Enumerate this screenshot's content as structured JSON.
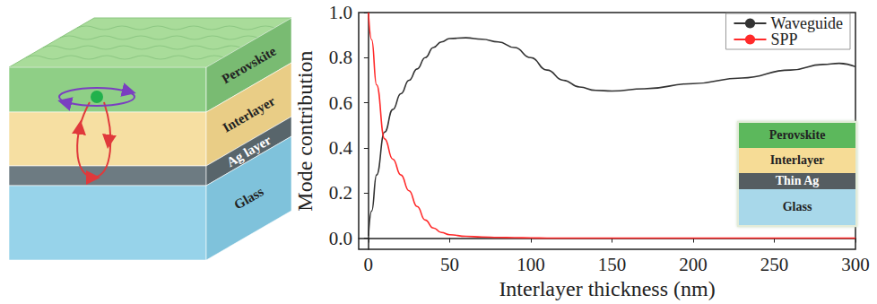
{
  "diagram": {
    "layers": [
      "Perovskite",
      "Interlayer",
      "Ag layer",
      "Glass"
    ]
  },
  "chart_data": {
    "type": "line",
    "x_label": "Interlayer thickness (nm)",
    "y_label": "Mode contribution",
    "x": [
      0,
      2,
      5,
      10,
      15,
      20,
      25,
      30,
      35,
      40,
      45,
      50,
      60,
      70,
      80,
      90,
      100,
      110,
      120,
      130,
      140,
      150,
      170,
      200,
      230,
      260,
      280,
      290,
      300
    ],
    "series": [
      {
        "name": "Waveguide",
        "color": "#333333",
        "values": [
          0.01,
          0.12,
          0.28,
          0.47,
          0.57,
          0.64,
          0.7,
          0.75,
          0.8,
          0.845,
          0.87,
          0.885,
          0.888,
          0.882,
          0.87,
          0.845,
          0.8,
          0.745,
          0.7,
          0.67,
          0.655,
          0.652,
          0.662,
          0.685,
          0.71,
          0.745,
          0.77,
          0.775,
          0.76
        ]
      },
      {
        "name": "SPP",
        "color": "#ff2a2a",
        "values": [
          1.0,
          0.88,
          0.68,
          0.44,
          0.35,
          0.28,
          0.21,
          0.14,
          0.08,
          0.045,
          0.025,
          0.015,
          0.008,
          0.005,
          0.003,
          0.002,
          0.001,
          0,
          0,
          0,
          0,
          0,
          0,
          0,
          0,
          0,
          0,
          0,
          0
        ]
      }
    ],
    "xlim": [
      -6,
      300
    ],
    "xticks": [
      0,
      50,
      100,
      150,
      200,
      250,
      300
    ],
    "ylim": [
      -0.05,
      1.0
    ],
    "yticks": [
      {
        "value": 0,
        "label": "0.0"
      },
      0.2,
      0.4,
      0.6,
      0.8,
      {
        "value": 1,
        "label": "1.0"
      }
    ],
    "grid": false,
    "legend": "upper right"
  },
  "inset": {
    "layers": [
      "Perovskite",
      "Interlayer",
      "Thin Ag",
      "Glass"
    ]
  }
}
